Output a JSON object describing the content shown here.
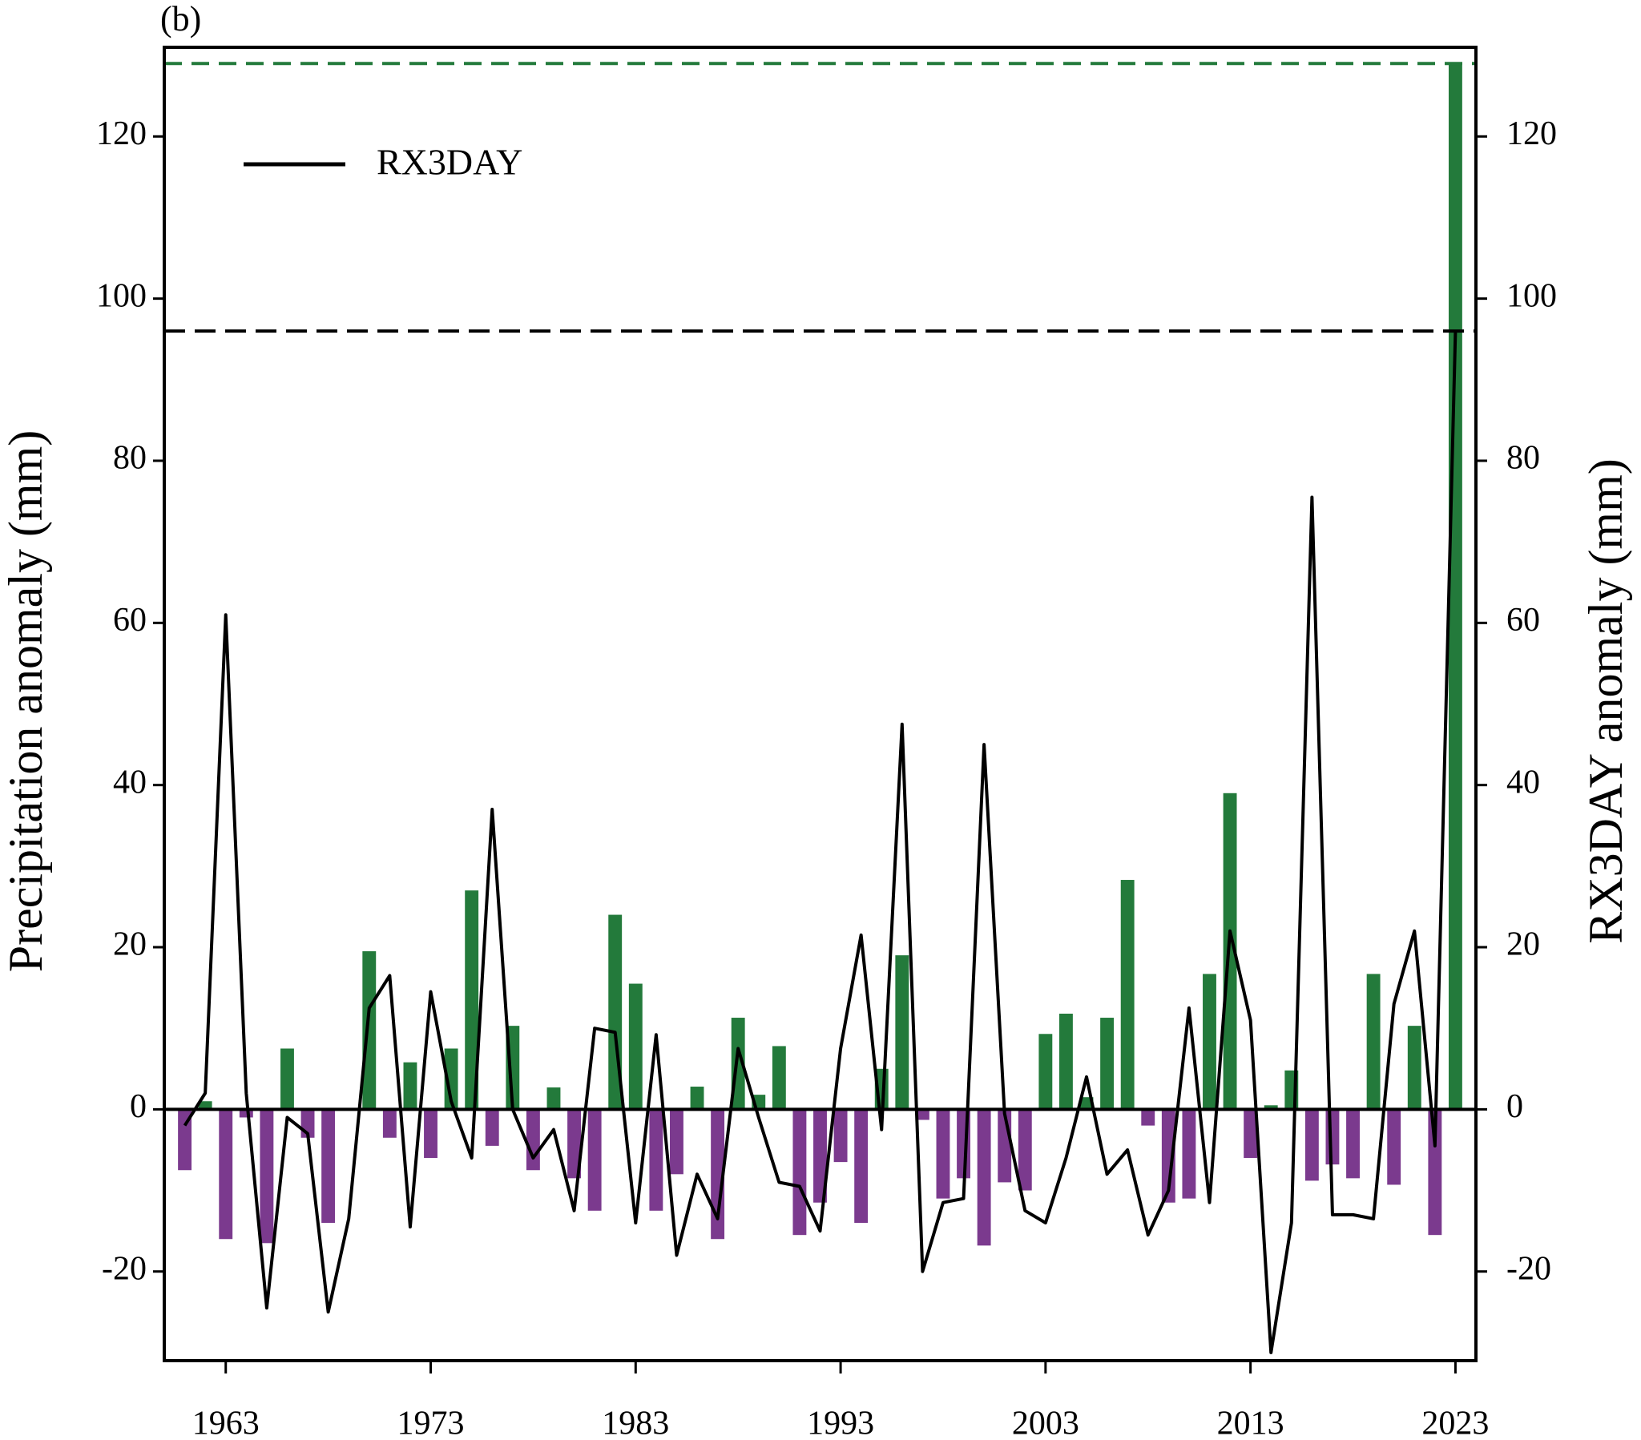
{
  "chart_data": {
    "type": "bar_line",
    "panel_label": "(b)",
    "y_label": "Precipitation anomaly (mm)",
    "y2_label": "RX3DAY anomaly (mm)",
    "x": [
      1961,
      1962,
      1963,
      1964,
      1965,
      1966,
      1967,
      1968,
      1969,
      1970,
      1971,
      1972,
      1973,
      1974,
      1975,
      1976,
      1977,
      1978,
      1979,
      1980,
      1981,
      1982,
      1983,
      1984,
      1985,
      1986,
      1987,
      1988,
      1989,
      1990,
      1991,
      1992,
      1993,
      1994,
      1995,
      1996,
      1997,
      1998,
      1999,
      2000,
      2001,
      2002,
      2003,
      2004,
      2005,
      2006,
      2007,
      2008,
      2009,
      2010,
      2011,
      2012,
      2013,
      2014,
      2015,
      2016,
      2017,
      2018,
      2019,
      2020,
      2021,
      2022,
      2023
    ],
    "bars": {
      "positive_color": "#237a3b",
      "negative_color": "#7b3a8e",
      "values": [
        -7.5,
        1,
        -16,
        -1,
        -16.5,
        7.5,
        -3.5,
        -14,
        0,
        19.5,
        -3.5,
        5.8,
        -6,
        7.5,
        27,
        -4.5,
        10.3,
        -7.5,
        2.7,
        -8.5,
        -12.5,
        24,
        15.5,
        -12.5,
        -8,
        2.8,
        -16,
        11.3,
        1.8,
        7.8,
        -15.5,
        -11.5,
        -6.5,
        -14,
        5,
        19,
        -1.3,
        -11,
        -8.5,
        -16.8,
        -9,
        -10,
        9.3,
        11.8,
        1.5,
        11.3,
        28.3,
        -2,
        -11.5,
        -11,
        16.7,
        39,
        -6,
        0.5,
        4.8,
        -8.8,
        -6.8,
        -8.5,
        16.7,
        -9.3,
        10.3,
        -15.5,
        129
      ]
    },
    "series": [
      {
        "name": "RX3DAY",
        "color": "#000000",
        "axis": "y2",
        "values": [
          -2,
          2,
          61,
          2,
          -24.5,
          -1,
          -3,
          -25,
          -13.5,
          12.5,
          16.5,
          -14.5,
          14.5,
          1,
          -6,
          37,
          0,
          -6,
          -2.5,
          -12.5,
          10,
          9.5,
          -14,
          9.2,
          -18,
          -8,
          -13.5,
          7.5,
          -1,
          -9,
          -9.5,
          -15,
          7.5,
          21.5,
          -2.5,
          47.5,
          -20,
          -11.5,
          -11,
          45,
          -0.5,
          -12.5,
          -14,
          -6,
          4,
          -8,
          -5,
          -15.5,
          -10,
          12.5,
          -11.5,
          22,
          11,
          -30,
          -14,
          75.5,
          -13,
          -13,
          -13.5,
          13,
          22,
          -4.5,
          96
        ]
      }
    ],
    "reference_lines": [
      {
        "value": 129,
        "color": "#237a3b",
        "axis": "y"
      },
      {
        "value": 96,
        "color": "#000000",
        "axis": "y2"
      }
    ],
    "xlim": [
      1960,
      2024
    ],
    "xticks": [
      1963,
      1973,
      1983,
      1993,
      2003,
      2013,
      2023
    ],
    "ylim": [
      -31,
      131
    ],
    "yticks": [
      -20,
      0,
      20,
      40,
      60,
      80,
      100,
      120
    ],
    "y2lim": [
      -31,
      131
    ],
    "y2ticks": [
      -20,
      0,
      20,
      40,
      60,
      80,
      100,
      120
    ],
    "legend": "upper left"
  }
}
